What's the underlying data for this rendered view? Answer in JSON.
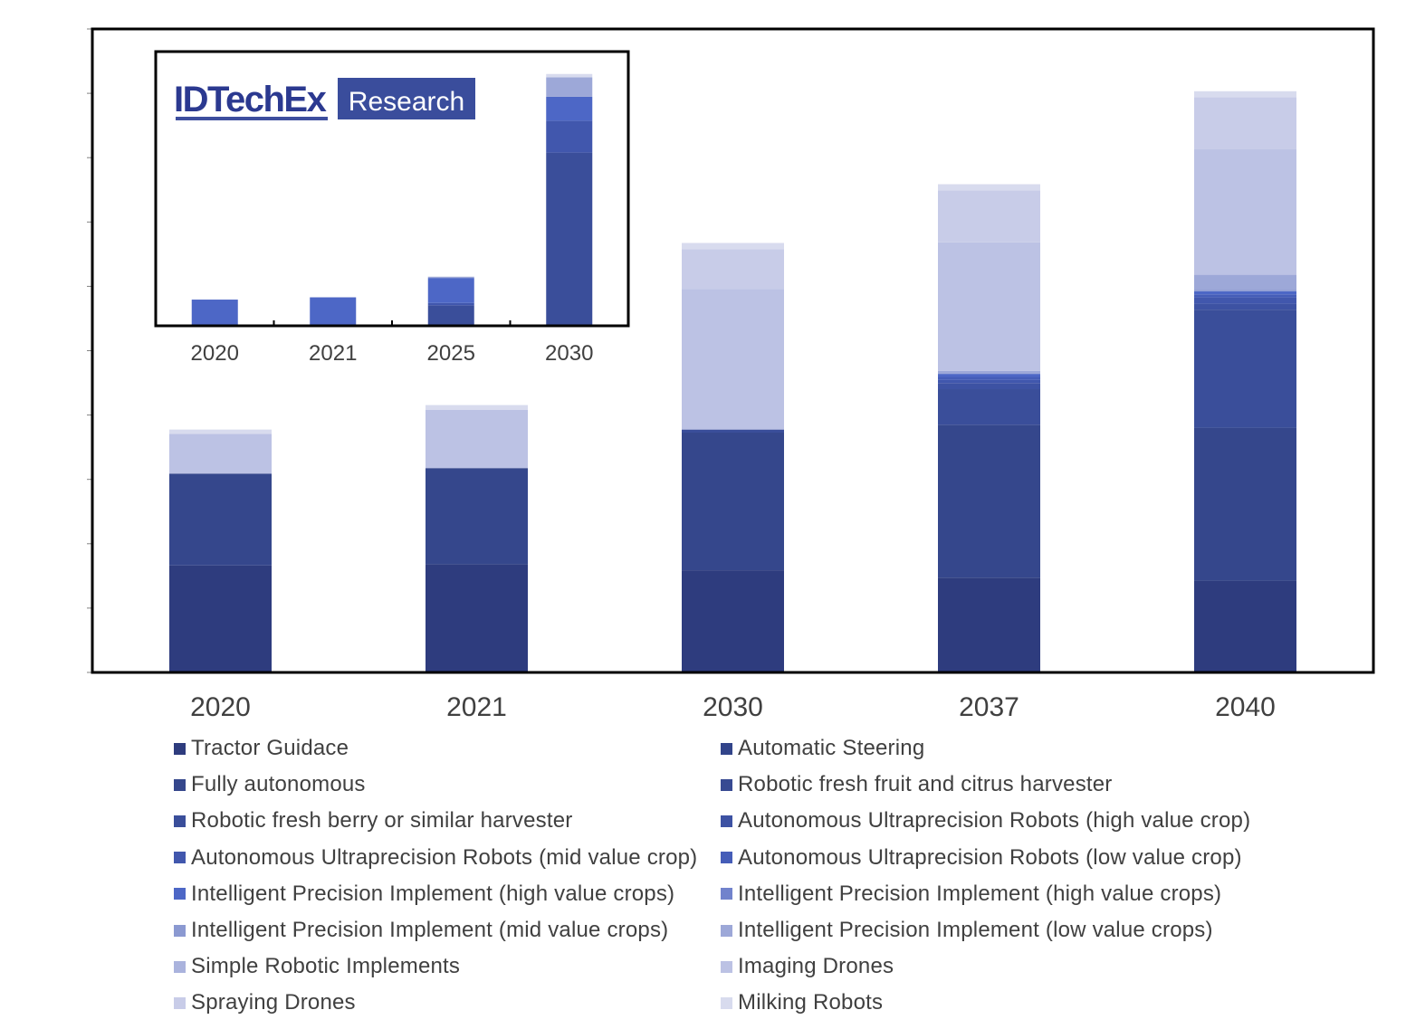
{
  "chart_data": {
    "type": "bar",
    "stacked": true,
    "title": "",
    "xlabel": "",
    "ylabel": "",
    "categories": [
      "2020",
      "2021",
      "2030",
      "2037",
      "2040"
    ],
    "ylim": [
      0,
      10
    ],
    "y_tick_labels_shown": false,
    "grid": false,
    "series": [
      {
        "name": "Tractor Guidace",
        "color": "#2e3c7e",
        "values": [
          1.75,
          1.77,
          1.67,
          1.55,
          1.5
        ]
      },
      {
        "name": "Automatic Steering",
        "color": "#32448a",
        "values": [
          0,
          0,
          0,
          0,
          0
        ]
      },
      {
        "name": "Fully autonomous",
        "color": "#35478c",
        "values": [
          1.5,
          1.57,
          2.25,
          2.5,
          2.5
        ]
      },
      {
        "name": "Robotic fresh fruit and citrus harvester",
        "color": "#374a92",
        "values": [
          0,
          0,
          0,
          0,
          0
        ]
      },
      {
        "name": "Robotic fresh berry or similar harvester",
        "color": "#3a4e9a",
        "values": [
          0,
          0,
          0.05,
          0.58,
          1.93
        ]
      },
      {
        "name": "Autonomous Ultraprecision Robots (high value crop)",
        "color": "#3d52a3",
        "values": [
          0,
          0,
          0,
          0.1,
          0.1
        ]
      },
      {
        "name": "Autonomous Ultraprecision Robots (mid value crop)",
        "color": "#4157ad",
        "values": [
          0,
          0,
          0,
          0.05,
          0.1
        ]
      },
      {
        "name": "Autonomous Ultraprecision Robots (low value crop)",
        "color": "#455db8",
        "values": [
          0,
          0,
          0,
          0.05,
          0.05
        ]
      },
      {
        "name": "Intelligent Precision Implement (high value crops)",
        "color": "#4d67c6",
        "values": [
          0,
          0,
          0,
          0.05,
          0.05
        ]
      },
      {
        "name": "Intelligent Precision Implement (high value crops)",
        "color": "#7183cc",
        "values": [
          0,
          0,
          0,
          0,
          0
        ]
      },
      {
        "name": "Intelligent Precision Implement (mid value crops)",
        "color": "#8b99d1",
        "values": [
          0,
          0,
          0,
          0,
          0.02
        ]
      },
      {
        "name": "Intelligent Precision Implement (low value crops)",
        "color": "#9da8d8",
        "values": [
          0,
          0,
          0,
          0.05,
          0.25
        ]
      },
      {
        "name": "Simple Robotic Implements",
        "color": "#aab3dd",
        "values": [
          0,
          0,
          0,
          0,
          0
        ]
      },
      {
        "name": "Imaging Drones",
        "color": "#bcc2e4",
        "values": [
          0.65,
          0.95,
          2.3,
          2.1,
          2.05
        ]
      },
      {
        "name": "Spraying Drones",
        "color": "#c8cce8",
        "values": [
          0,
          0,
          0.65,
          0.85,
          0.85
        ]
      },
      {
        "name": "Milking Robots",
        "color": "#d8dbee",
        "values": [
          0.07,
          0.08,
          0.1,
          0.1,
          0.1
        ]
      }
    ],
    "inset": {
      "type": "bar",
      "stacked": true,
      "categories": [
        "2020",
        "2021",
        "2025",
        "2030"
      ],
      "ylim": [
        0,
        11
      ],
      "series": [
        {
          "name": "Robotic fresh berry or similar harvester",
          "color": "#3a4e9a",
          "values": [
            0,
            0,
            0.9,
            7.6
          ]
        },
        {
          "name": "Autonomous Ultraprecision Robots (high value crop)",
          "color": "#4157ad",
          "values": [
            0,
            0,
            0.1,
            1.4
          ]
        },
        {
          "name": "Intelligent Precision Implement (high value crops)",
          "color": "#4d67c6",
          "values": [
            1.15,
            1.25,
            1.1,
            1.05
          ]
        },
        {
          "name": "Intelligent Precision Implement (low value crops)",
          "color": "#9da8d8",
          "values": [
            0,
            0,
            0.05,
            0.85
          ]
        },
        {
          "name": "Milking Robots",
          "color": "#d8dbee",
          "values": [
            0,
            0,
            0.02,
            0.15
          ]
        }
      ]
    }
  },
  "logo": {
    "brand": "IDTechEx",
    "tag": "Research"
  }
}
